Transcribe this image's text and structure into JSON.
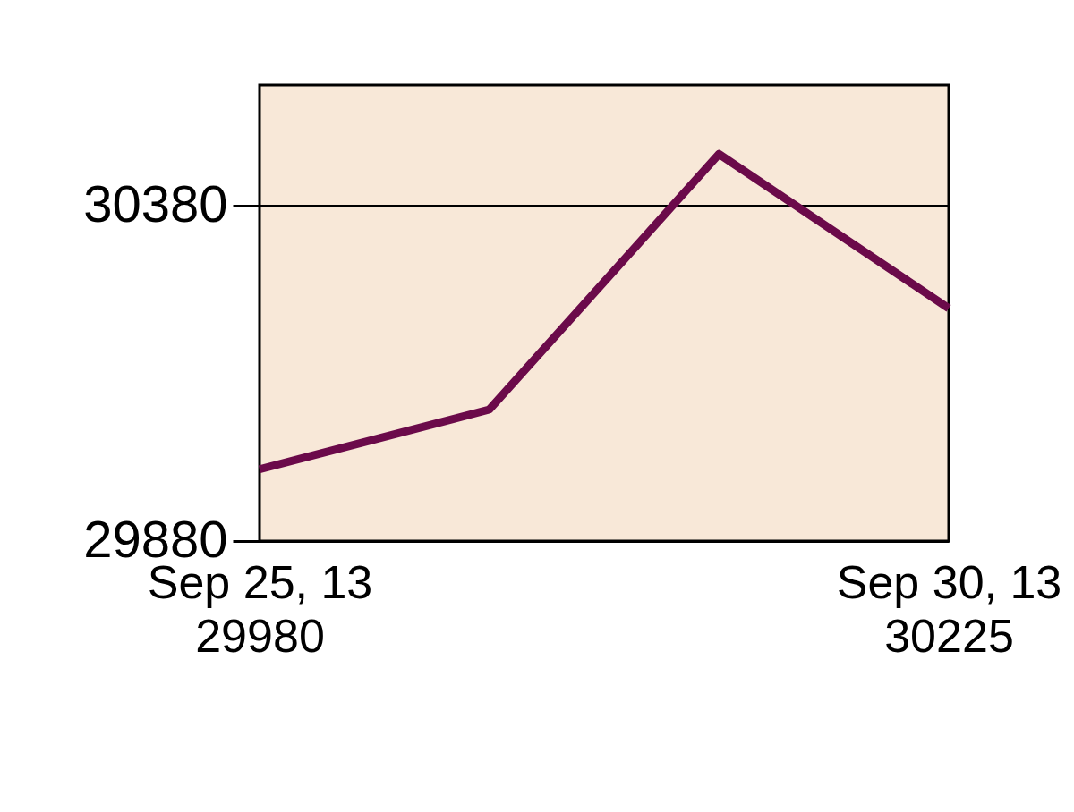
{
  "chart_data": {
    "type": "line",
    "categories": [
      "Sep 25, 13\n29980",
      null,
      null,
      "Sep 30, 13\n30225"
    ],
    "series": [
      {
        "color": "#6b0a4a",
        "values": [
          29987,
          30076,
          30457,
          30227
        ]
      }
    ],
    "ylim": [
      29880,
      30560
    ],
    "yticks": [
      29880,
      30380
    ],
    "grid": "y",
    "marker": "none",
    "line_style": "solid"
  }
}
